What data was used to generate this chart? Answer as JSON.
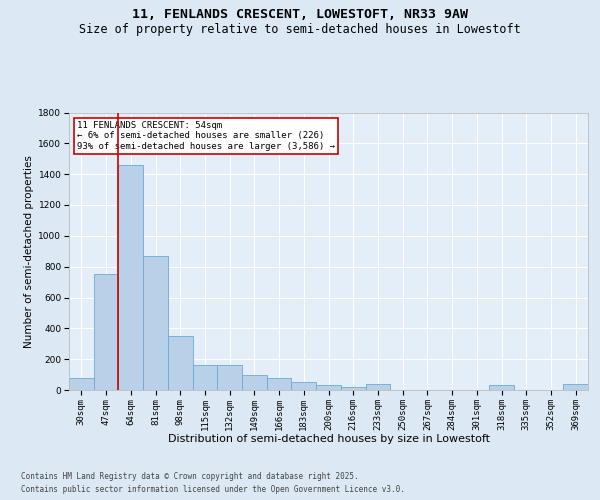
{
  "title1": "11, FENLANDS CRESCENT, LOWESTOFT, NR33 9AW",
  "title2": "Size of property relative to semi-detached houses in Lowestoft",
  "xlabel": "Distribution of semi-detached houses by size in Lowestoft",
  "ylabel": "Number of semi-detached properties",
  "categories": [
    "30sqm",
    "47sqm",
    "64sqm",
    "81sqm",
    "98sqm",
    "115sqm",
    "132sqm",
    "149sqm",
    "166sqm",
    "183sqm",
    "200sqm",
    "216sqm",
    "233sqm",
    "250sqm",
    "267sqm",
    "284sqm",
    "301sqm",
    "318sqm",
    "335sqm",
    "352sqm",
    "369sqm"
  ],
  "values": [
    75,
    750,
    1460,
    870,
    350,
    165,
    165,
    95,
    80,
    55,
    30,
    20,
    40,
    0,
    0,
    0,
    0,
    35,
    0,
    0,
    40
  ],
  "bar_color": "#b8d0e8",
  "bar_edge_color": "#6aaad4",
  "vline_color": "#cc0000",
  "annotation_title": "11 FENLANDS CRESCENT: 54sqm",
  "annotation_line1": "← 6% of semi-detached houses are smaller (226)",
  "annotation_line2": "93% of semi-detached houses are larger (3,586) →",
  "annotation_box_color": "#ffffff",
  "annotation_box_edge": "#cc0000",
  "footer1": "Contains HM Land Registry data © Crown copyright and database right 2025.",
  "footer2": "Contains public sector information licensed under the Open Government Licence v3.0.",
  "ylim": [
    0,
    1800
  ],
  "yticks": [
    0,
    200,
    400,
    600,
    800,
    1000,
    1200,
    1400,
    1600,
    1800
  ],
  "bg_color": "#dce9f5",
  "plot_bg_color": "#e4eef8",
  "grid_color": "#ffffff",
  "title_fontsize": 9.5,
  "subtitle_fontsize": 8.5,
  "tick_fontsize": 6.5,
  "ylabel_fontsize": 7.5,
  "xlabel_fontsize": 8,
  "footer_fontsize": 5.5,
  "annot_fontsize": 6.5
}
